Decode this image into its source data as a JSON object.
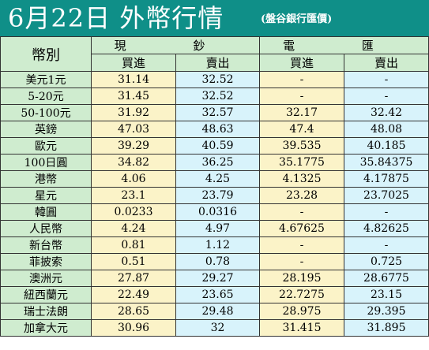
{
  "title": "6月22日 外幣行情",
  "subtitle": "(盤谷銀行匯價)",
  "header": {
    "currency_col": "幣別",
    "cash": "現 鈔",
    "transfer": "電 匯",
    "buy": "買進",
    "sell": "賣出"
  },
  "rows": [
    {
      "name": "美元1元",
      "cash_buy": "31.14",
      "cash_sell": "32.52",
      "tt_buy": "-",
      "tt_sell": "-"
    },
    {
      "name": "5-20元",
      "cash_buy": "31.45",
      "cash_sell": "32.52",
      "tt_buy": "-",
      "tt_sell": "-"
    },
    {
      "name": "50-100元",
      "cash_buy": "31.92",
      "cash_sell": "32.57",
      "tt_buy": "32.17",
      "tt_sell": "32.42"
    },
    {
      "name": "英鎊",
      "cash_buy": "47.03",
      "cash_sell": "48.63",
      "tt_buy": "47.4",
      "tt_sell": "48.08"
    },
    {
      "name": "歐元",
      "cash_buy": "39.29",
      "cash_sell": "40.59",
      "tt_buy": "39.535",
      "tt_sell": "40.185"
    },
    {
      "name": "100日圓",
      "cash_buy": "34.82",
      "cash_sell": "36.25",
      "tt_buy": "35.1775",
      "tt_sell": "35.84375"
    },
    {
      "name": "港幣",
      "cash_buy": "4.06",
      "cash_sell": "4.25",
      "tt_buy": "4.1325",
      "tt_sell": "4.17875"
    },
    {
      "name": "星元",
      "cash_buy": "23.1",
      "cash_sell": "23.79",
      "tt_buy": "23.28",
      "tt_sell": "23.7025"
    },
    {
      "name": "韓圓",
      "cash_buy": "0.0233",
      "cash_sell": "0.0316",
      "tt_buy": "-",
      "tt_sell": "-"
    },
    {
      "name": "人民幣",
      "cash_buy": "4.24",
      "cash_sell": "4.97",
      "tt_buy": "4.67625",
      "tt_sell": "4.82625"
    },
    {
      "name": "新台幣",
      "cash_buy": "0.81",
      "cash_sell": "1.12",
      "tt_buy": "-",
      "tt_sell": "-"
    },
    {
      "name": "菲披索",
      "cash_buy": "0.51",
      "cash_sell": "0.78",
      "tt_buy": "-",
      "tt_sell": "0.725"
    },
    {
      "name": "澳洲元",
      "cash_buy": "27.87",
      "cash_sell": "29.27",
      "tt_buy": "28.195",
      "tt_sell": "28.6775"
    },
    {
      "name": "紐西蘭元",
      "cash_buy": "22.49",
      "cash_sell": "23.65",
      "tt_buy": "22.7275",
      "tt_sell": "23.15"
    },
    {
      "name": "瑞士法朗",
      "cash_buy": "28.65",
      "cash_sell": "29.48",
      "tt_buy": "28.975",
      "tt_sell": "29.395"
    },
    {
      "name": "加拿大元",
      "cash_buy": "30.96",
      "cash_sell": "32",
      "tt_buy": "31.415",
      "tt_sell": "31.895"
    }
  ]
}
